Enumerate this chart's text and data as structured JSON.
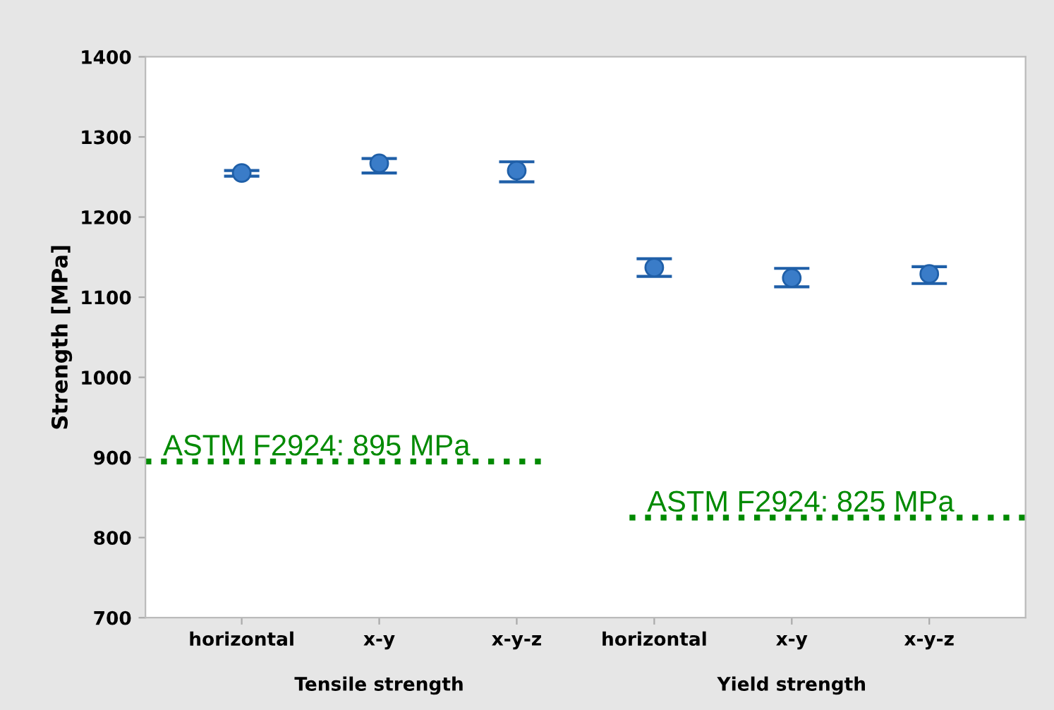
{
  "chart_data": {
    "type": "scatter",
    "ylabel": "Strength [MPa]",
    "categories": [
      "horizontal",
      "x-y",
      "x-y-z",
      "horizontal",
      "x-y",
      "x-y-z"
    ],
    "values": [
      1255,
      1267,
      1258,
      1137,
      1124,
      1129
    ],
    "errors": [
      [
        1251,
        1258
      ],
      [
        1255,
        1273
      ],
      [
        1244,
        1269
      ],
      [
        1126,
        1148
      ],
      [
        1113,
        1136
      ],
      [
        1117,
        1138
      ]
    ],
    "color": "#3a7cc8",
    "marker": "circle",
    "ylim": [
      700,
      1400
    ],
    "yticks": [
      700,
      800,
      900,
      1000,
      1100,
      1200,
      1300,
      1400
    ],
    "ref_lines": [
      {
        "axis": "y",
        "value": 895,
        "label": "ASTM F2924: 895 MPa",
        "color": "#008a00",
        "line_style": "dotted"
      },
      {
        "axis": "y",
        "value": 825,
        "label": "ASTM F2924: 825 MPa",
        "color": "#008a00",
        "line_style": "dotted"
      }
    ],
    "annotations": [
      "Tensile strength",
      "Yield strength"
    ],
    "grid": false,
    "legend": false
  }
}
